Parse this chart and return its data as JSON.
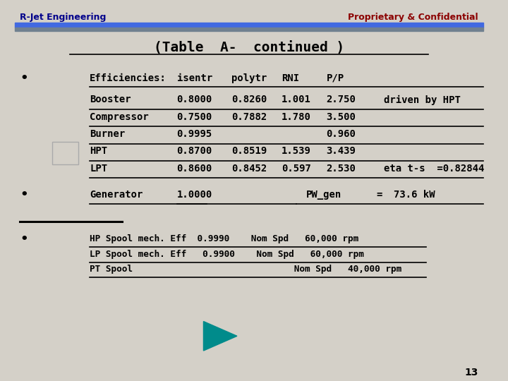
{
  "bg_color": "#d4d0c8",
  "header_left": "R-Jet Engineering",
  "header_right": "Proprietary & Confidential",
  "header_left_color": "#00008B",
  "header_right_color": "#8B0000",
  "header_bar_color1": "#4169E1",
  "header_bar_color2": "#708090",
  "title": "(Table  A-  continued )",
  "title_color": "#000000",
  "text_color": "#000000",
  "page_number": "13",
  "rows": [
    {
      "name": "Booster",
      "isentr": "0.8000",
      "polytr": "0.8260",
      "rni": "1.001",
      "pp": "2.750",
      "note": "driven by HPT"
    },
    {
      "name": "Compressor",
      "isentr": "0.7500",
      "polytr": "0.7882",
      "rni": "1.780",
      "pp": "3.500",
      "note": ""
    },
    {
      "name": "Burner",
      "isentr": "0.9995",
      "polytr": "",
      "rni": "",
      "pp": "0.960",
      "note": ""
    },
    {
      "name": "HPT",
      "isentr": "0.8700",
      "polytr": "0.8519",
      "rni": "1.539",
      "pp": "3.439",
      "note": ""
    },
    {
      "name": "LPT",
      "isentr": "0.8600",
      "polytr": "0.8452",
      "rni": "0.597",
      "pp": "2.530",
      "note": "eta t-s  =0.82844"
    }
  ],
  "bullet3_lines": [
    "HP Spool mech. Eff  0.9990    Nom Spd   60,000 rpm",
    "LP Spool mech. Eff   0.9900    Nom Spd   60,000 rpm",
    "PT Spool                              Nom Spd   40,000 rpm"
  ],
  "arrow_color": "#008B8B"
}
